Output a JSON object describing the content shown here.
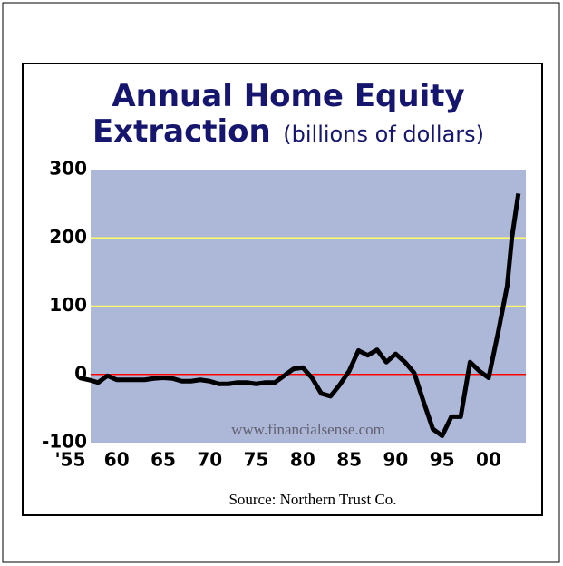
{
  "chart_data": {
    "type": "line",
    "title": "Annual Home Equity",
    "title_line2": "Extraction",
    "subtitle": "(billions of dollars)",
    "watermark": "www.financialsense.com",
    "source": "Source: Northern Trust Co.",
    "x": [
      1956,
      1957,
      1958,
      1959,
      1960,
      1961,
      1962,
      1963,
      1964,
      1965,
      1966,
      1967,
      1968,
      1969,
      1970,
      1971,
      1972,
      1973,
      1974,
      1975,
      1976,
      1977,
      1978,
      1979,
      1980,
      1981,
      1982,
      1983,
      1984,
      1985,
      1986,
      1987,
      1988,
      1989,
      1990,
      1991,
      1992,
      1993,
      1994,
      1995,
      1996,
      1997,
      1998,
      1999,
      2000,
      2001,
      2002,
      2002.5,
      2003.2
    ],
    "series": [
      {
        "name": "Home equity extraction",
        "color": "#000000",
        "values": [
          -5,
          -8,
          -12,
          -2,
          -8,
          -8,
          -8,
          -8,
          -6,
          -5,
          -6,
          -10,
          -10,
          -8,
          -10,
          -14,
          -14,
          -12,
          -12,
          -14,
          -12,
          -12,
          -2,
          8,
          10,
          -5,
          -28,
          -32,
          -15,
          5,
          35,
          28,
          36,
          18,
          30,
          18,
          2,
          -40,
          -80,
          -90,
          -62,
          -62,
          18,
          5,
          -5,
          60,
          130,
          200,
          265
        ]
      }
    ],
    "xlim": [
      1957.2,
      2004
    ],
    "xticks": [
      {
        "value": 1955,
        "label": "'55"
      },
      {
        "value": 1960,
        "label": "60"
      },
      {
        "value": 1965,
        "label": "65"
      },
      {
        "value": 1970,
        "label": "70"
      },
      {
        "value": 1975,
        "label": "75"
      },
      {
        "value": 1980,
        "label": "80"
      },
      {
        "value": 1985,
        "label": "85"
      },
      {
        "value": 1990,
        "label": "90"
      },
      {
        "value": 1995,
        "label": "95"
      },
      {
        "value": 2000,
        "label": "00"
      }
    ],
    "ylim": [
      -100,
      300
    ],
    "yticks": [
      300,
      200,
      100,
      0,
      -100
    ],
    "grid": true,
    "grid_color": "#ffff66",
    "zero_line_color": "#ff0000",
    "plot_background": "#adb7d8",
    "title_color": "#16166e"
  }
}
